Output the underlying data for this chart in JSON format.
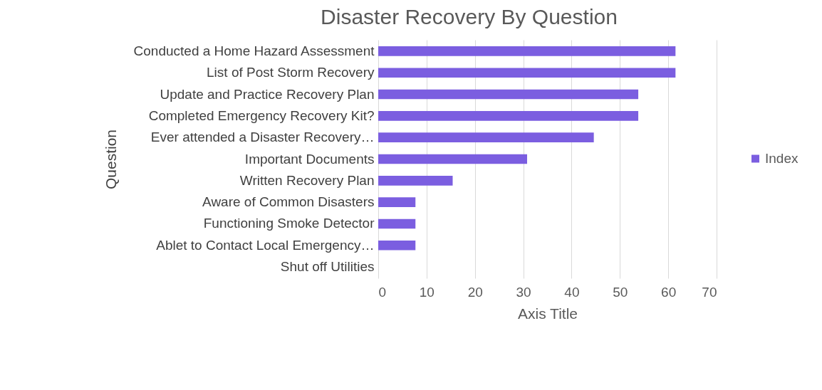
{
  "chart_data": {
    "type": "bar",
    "orientation": "horizontal",
    "title": "Disaster Recovery By Question",
    "xlabel": "Axis Title",
    "ylabel": "Question",
    "categories": [
      "Conducted a Home Hazard Assessment",
      "List of Post Storm Recovery",
      "Update and Practice Recovery Plan",
      "Completed Emergency Recovery Kit?",
      "Ever attended a Disaster Recovery…",
      "Important Documents",
      "Written Recovery Plan",
      "Aware of Common Disasters",
      "Functioning Smoke Detector",
      "Ablet to Contact Local Emergency…",
      "Shut off Utilities"
    ],
    "series": [
      {
        "name": "Index",
        "color": "#7b5ee0",
        "values": [
          61.5,
          61.5,
          53.8,
          53.8,
          44.6,
          30.8,
          15.4,
          7.7,
          7.7,
          7.7,
          0
        ]
      }
    ],
    "xlim": [
      0,
      70
    ],
    "xticks": [
      0,
      10,
      20,
      30,
      40,
      50,
      60,
      70
    ],
    "grid": "x",
    "legend": "right"
  }
}
